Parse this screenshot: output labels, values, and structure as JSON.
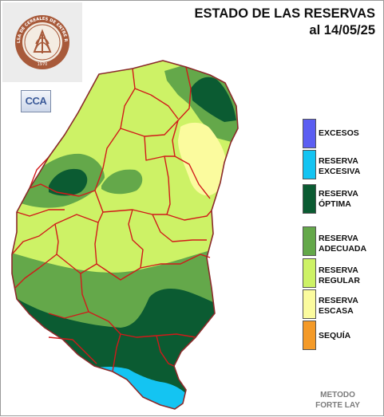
{
  "header": {
    "title": "ESTADO DE LAS RESERVAS",
    "date": "al 14/05/25"
  },
  "logos": {
    "seal_text": "BOLSA DE CEREALES DE ENTRE RÍOS",
    "seal_year": "1970",
    "cca_label": "CCA"
  },
  "legend": {
    "items": [
      {
        "label": "EXCESOS",
        "color": "#5b5ef2"
      },
      {
        "label": "RESERVA\nEXCESIVA",
        "color": "#14c4f2"
      },
      {
        "label": "RESERVA\nÓPTIMA",
        "color": "#0b5b32"
      },
      {
        "label": "RESERVA\nADECUADA",
        "color": "#64a84a"
      },
      {
        "label": "RESERVA\nREGULAR",
        "color": "#cdf266"
      },
      {
        "label": "RESERVA\nESCASA",
        "color": "#fbfb9e"
      },
      {
        "label": "SEQUÍA",
        "color": "#f49a28"
      }
    ]
  },
  "footer": {
    "method": "METODO\nFORTE LAY"
  }
}
